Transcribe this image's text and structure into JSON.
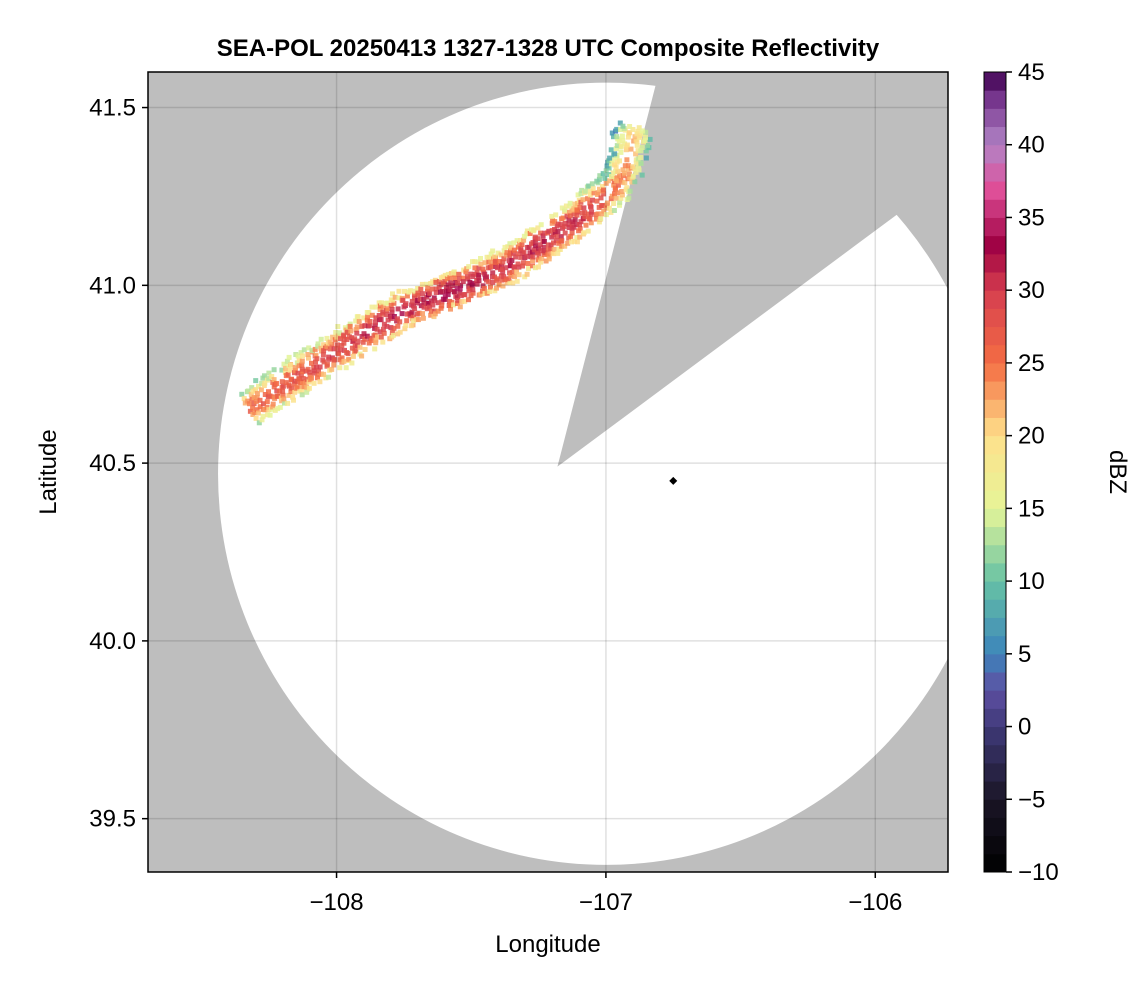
{
  "chart_data": {
    "type": "heatmap",
    "title": "SEA-POL 20250413 1327-1328 UTC Composite Reflectivity",
    "xlabel": "Longitude",
    "ylabel": "Latitude",
    "xlim": [
      -108.7,
      -105.73
    ],
    "ylim": [
      39.35,
      41.6
    ],
    "xticks": [
      -108,
      -107,
      -106
    ],
    "xtick_labels": [
      "−108",
      "−107",
      "−106"
    ],
    "yticks": [
      39.5,
      40.0,
      40.5,
      41.0,
      41.5
    ],
    "ytick_labels": [
      "39.5",
      "40.0",
      "40.5",
      "41.0",
      "41.5"
    ],
    "grid": true,
    "background_color": "#bebebe",
    "radar_site": {
      "lon": -106.75,
      "lat": 40.45
    },
    "radar_coverage": {
      "center_lon": -107.0,
      "center_lat": 40.47,
      "radius_lon_deg": 1.44,
      "radius_lat_deg": 1.1,
      "blocked_sector": {
        "apex": [
          -107.18,
          40.49
        ],
        "edges": [
          [
            -106.83,
            41.52
          ],
          [
            -106.06,
            41.12
          ]
        ]
      }
    },
    "colorbar": {
      "label": "dBZ",
      "range": [
        -10,
        45
      ],
      "ticks": [
        -10,
        -5,
        0,
        5,
        10,
        15,
        20,
        25,
        30,
        35,
        40,
        45
      ],
      "tick_labels": [
        "−10",
        "−5",
        "0",
        "5",
        "10",
        "15",
        "20",
        "25",
        "30",
        "35",
        "40",
        "45"
      ],
      "colormap": "Spectral (reversed, extended to black)",
      "stops": [
        {
          "value": -10,
          "color": "#000000"
        },
        {
          "value": -5,
          "color": "#1a1526"
        },
        {
          "value": 0,
          "color": "#3f3a78"
        },
        {
          "value": 2.5,
          "color": "#5e4fa2"
        },
        {
          "value": 5,
          "color": "#3c84bb"
        },
        {
          "value": 10,
          "color": "#66c2a5"
        },
        {
          "value": 15,
          "color": "#e6f598"
        },
        {
          "value": 20,
          "color": "#fee08b"
        },
        {
          "value": 25,
          "color": "#f46d43"
        },
        {
          "value": 30,
          "color": "#d53e4f"
        },
        {
          "value": 33,
          "color": "#9e0142"
        },
        {
          "value": 37,
          "color": "#e0509a"
        },
        {
          "value": 40,
          "color": "#b184c6"
        },
        {
          "value": 43,
          "color": "#7a3a91"
        },
        {
          "value": 45,
          "color": "#3f0050"
        }
      ]
    },
    "echo_band": {
      "description_points_lon_lat_dbz": [
        [
          -108.33,
          40.66,
          26
        ],
        [
          -108.15,
          40.75,
          28
        ],
        [
          -107.95,
          40.85,
          30
        ],
        [
          -107.75,
          40.94,
          32
        ],
        [
          -107.55,
          41.0,
          33
        ],
        [
          -107.4,
          41.05,
          30
        ],
        [
          -107.25,
          41.12,
          31
        ],
        [
          -107.1,
          41.2,
          30
        ],
        [
          -106.95,
          41.3,
          24
        ],
        [
          -106.9,
          41.45,
          20
        ]
      ]
    }
  }
}
